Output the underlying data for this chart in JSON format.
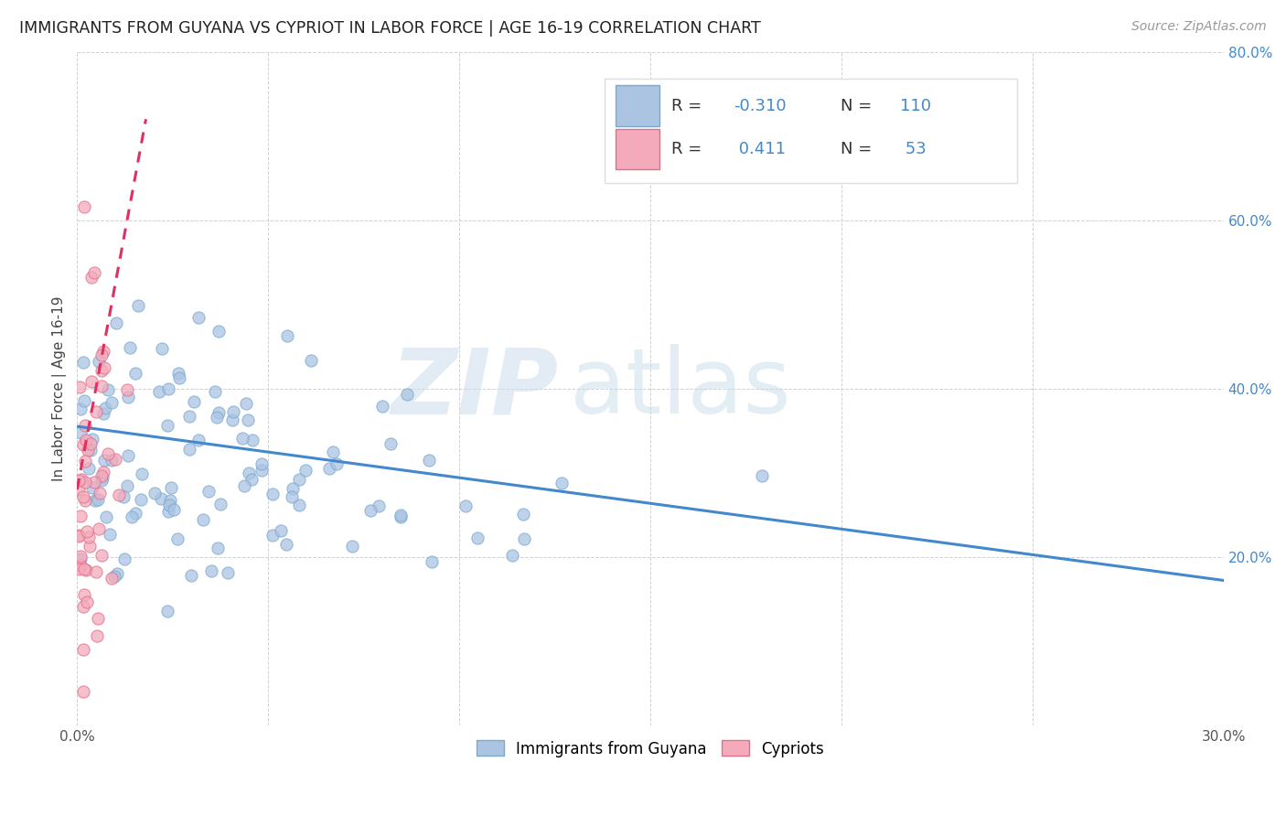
{
  "title": "IMMIGRANTS FROM GUYANA VS CYPRIOT IN LABOR FORCE | AGE 16-19 CORRELATION CHART",
  "source": "Source: ZipAtlas.com",
  "ylabel": "In Labor Force | Age 16-19",
  "xlim": [
    0.0,
    0.3
  ],
  "ylim": [
    0.0,
    0.8
  ],
  "xticks": [
    0.0,
    0.05,
    0.1,
    0.15,
    0.2,
    0.25,
    0.3
  ],
  "yticks": [
    0.0,
    0.2,
    0.4,
    0.6,
    0.8
  ],
  "series1_color": "#aac4e2",
  "series1_edge": "#7aaad0",
  "series2_color": "#f4aabb",
  "series2_edge": "#e0708a",
  "trendline1_color": "#4488cc",
  "trendline2_color": "#e03060",
  "r1": -0.31,
  "n1": 110,
  "r2": 0.411,
  "n2": 53,
  "legend_label1": "Immigrants from Guyana",
  "legend_label2": "Cypriots",
  "blue_trend_x0": 0.0,
  "blue_trend_y0": 0.355,
  "blue_trend_x1": 0.3,
  "blue_trend_y1": 0.172,
  "pink_trend_x0": 0.0,
  "pink_trend_y0": 0.28,
  "pink_trend_x1": 0.018,
  "pink_trend_y1": 0.72
}
